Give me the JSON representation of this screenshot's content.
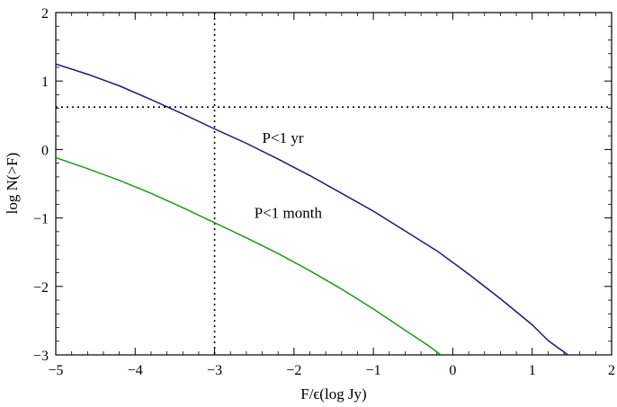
{
  "chart_data": {
    "type": "line",
    "title": "",
    "xlabel": "F/ϵ(log  Jy)",
    "ylabel": "log N(>F)",
    "xlim": [
      -5,
      2
    ],
    "ylim": [
      -3,
      2
    ],
    "xticks": [
      -5,
      -4,
      -3,
      -2,
      -1,
      0,
      1,
      2
    ],
    "yticks": [
      -3,
      -2,
      -1,
      0,
      1,
      2
    ],
    "xtick_labels": [
      "−5",
      "−4",
      "−3",
      "−2",
      "−1",
      "0",
      "1",
      "2"
    ],
    "ytick_labels": [
      "−3",
      "−2",
      "−1",
      "0",
      "1",
      "2"
    ],
    "grid": false,
    "reference_lines": {
      "vertical_x": -3.0,
      "horizontal_y": 0.62,
      "style": "dotted"
    },
    "series": [
      {
        "color": "#1a1a7a",
        "x": [
          -5.0,
          -4.6,
          -4.2,
          -3.8,
          -3.4,
          -3.0,
          -2.6,
          -2.2,
          -1.8,
          -1.4,
          -1.0,
          -0.6,
          -0.2,
          0.2,
          0.6,
          1.0,
          1.2,
          1.45
        ],
        "y": [
          1.25,
          1.1,
          0.93,
          0.73,
          0.52,
          0.3,
          0.09,
          -0.14,
          -0.38,
          -0.64,
          -0.9,
          -1.19,
          -1.48,
          -1.82,
          -2.18,
          -2.56,
          -2.79,
          -3.0
        ]
      },
      {
        "color": "#1a9a1a",
        "x": [
          -5.0,
          -4.6,
          -4.2,
          -3.8,
          -3.4,
          -3.0,
          -2.6,
          -2.2,
          -1.8,
          -1.4,
          -1.0,
          -0.6,
          -0.3,
          -0.15
        ],
        "y": [
          -0.12,
          -0.28,
          -0.45,
          -0.64,
          -0.85,
          -1.07,
          -1.29,
          -1.52,
          -1.77,
          -2.04,
          -2.33,
          -2.64,
          -2.87,
          -3.0
        ]
      }
    ],
    "annotations": [
      {
        "text": "P<1 yr",
        "x": -2.4,
        "y": 0.1
      },
      {
        "text": "P<1 month",
        "x": -2.5,
        "y": -1.0
      }
    ]
  }
}
